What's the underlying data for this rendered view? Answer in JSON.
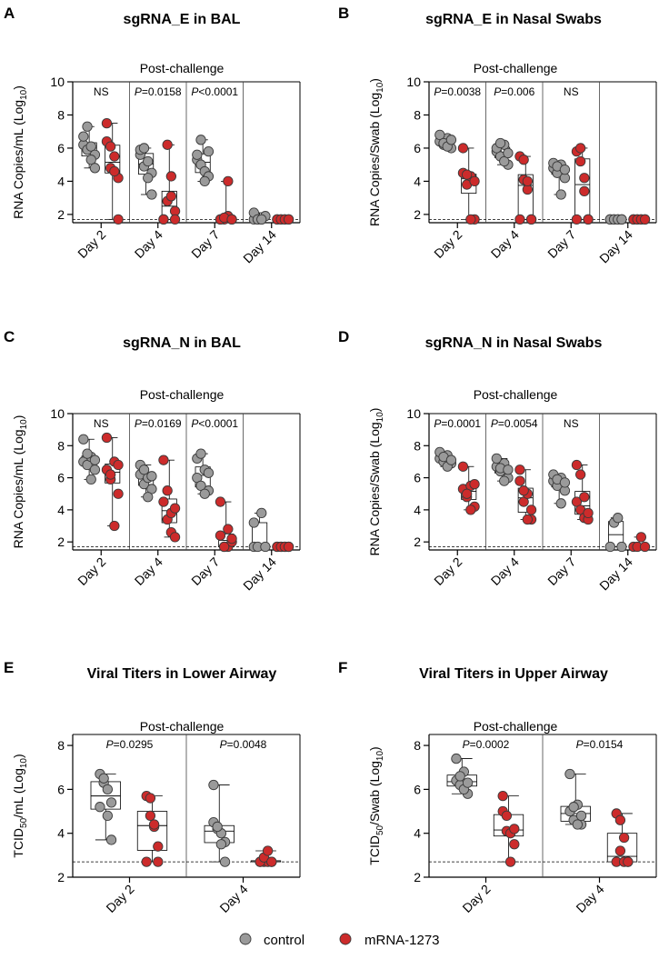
{
  "legend": {
    "items": [
      {
        "label": "control",
        "color": "#9a9a9a"
      },
      {
        "label": "mRNA-1273",
        "color": "#cc2b2b"
      }
    ]
  },
  "chart_data": [
    {
      "letter": "A",
      "type": "box-scatter",
      "title": "sgRNA_E in BAL",
      "subtitle": "Post-challenge",
      "ylabel_main": "RNA Copies/mL (Log",
      "ylabel_sub": "10",
      "ylabel_end": ")",
      "ylim": [
        1.5,
        10
      ],
      "yticks": [
        2,
        4,
        6,
        8,
        10
      ],
      "lod": 1.7,
      "categories": [
        "Day 2",
        "Day 4",
        "Day 7",
        "Day 14"
      ],
      "pvalues": [
        {
          "pre": "",
          "italic": "",
          "text": "NS"
        },
        {
          "pre": "",
          "italic": "P",
          "text": "=0.0158"
        },
        {
          "pre": "",
          "italic": "P",
          "text": "<0.0001"
        },
        {
          "pre": "",
          "italic": "",
          "text": ""
        }
      ],
      "series": [
        {
          "name": "control",
          "values": [
            [
              6.2,
              5.9,
              6.1,
              5.6,
              6.7,
              7.3,
              5.3,
              4.8
            ],
            [
              5.6,
              4.9,
              5.2,
              4.5,
              5.9,
              6.0,
              4.2,
              3.2
            ],
            [
              5.3,
              5.0,
              4.6,
              4.3,
              5.6,
              6.5,
              4.0,
              5.8
            ],
            [
              1.7,
              1.7,
              1.7,
              1.9,
              2.1,
              1.7,
              1.7
            ]
          ]
        },
        {
          "name": "mRNA-1273",
          "values": [
            [
              6.4,
              4.8,
              5.5,
              4.2,
              7.5,
              6.1,
              4.6,
              1.7
            ],
            [
              1.7,
              2.8,
              3.1,
              2.2,
              1.7,
              6.2,
              4.3,
              1.7
            ],
            [
              1.7,
              1.7,
              1.9,
              1.7,
              1.7,
              1.8,
              4.0,
              1.7
            ],
            [
              1.7,
              1.7,
              1.7,
              1.7,
              1.7,
              1.7,
              1.7,
              1.7
            ]
          ]
        }
      ]
    },
    {
      "letter": "B",
      "type": "box-scatter",
      "title": "sgRNA_E in Nasal Swabs",
      "subtitle": "Post-challenge",
      "ylabel_main": "RNA Copies/Swab (Log",
      "ylabel_sub": "10",
      "ylabel_end": ")",
      "ylim": [
        1.5,
        10
      ],
      "yticks": [
        2,
        4,
        6,
        8,
        10
      ],
      "lod": 1.7,
      "categories": [
        "Day 2",
        "Day 4",
        "Day 7",
        "Day 14"
      ],
      "pvalues": [
        {
          "pre": "",
          "italic": "P",
          "text": "=0.0038"
        },
        {
          "pre": "",
          "italic": "P",
          "text": "=0.006"
        },
        {
          "pre": "",
          "italic": "",
          "text": "NS"
        },
        {
          "pre": "",
          "italic": "",
          "text": ""
        }
      ],
      "series": [
        {
          "name": "control",
          "values": [
            [
              6.4,
              6.2,
              6.6,
              6.0,
              6.8,
              6.3,
              6.1,
              6.5
            ],
            [
              5.8,
              5.5,
              6.2,
              5.0,
              6.0,
              6.3,
              5.2,
              5.7
            ],
            [
              4.8,
              4.5,
              5.0,
              4.2,
              5.1,
              4.9,
              3.2,
              4.7
            ],
            [
              1.7,
              1.7,
              1.7,
              1.7,
              1.7,
              1.7,
              1.7,
              1.7
            ]
          ]
        },
        {
          "name": "mRNA-1273",
          "values": [
            [
              4.5,
              3.8,
              4.3,
              1.7,
              6.0,
              4.4,
              1.7,
              4.0
            ],
            [
              5.5,
              4.1,
              3.5,
              1.7,
              1.7,
              5.3,
              4.0,
              1.7
            ],
            [
              5.8,
              5.2,
              3.4,
              1.7,
              1.7,
              6.0,
              4.2,
              1.7
            ],
            [
              1.7,
              1.7,
              1.7,
              1.7,
              1.7,
              1.7,
              1.7,
              1.7
            ]
          ]
        }
      ]
    },
    {
      "letter": "C",
      "type": "box-scatter",
      "title": "sgRNA_N in BAL",
      "subtitle": "Post-challenge",
      "ylabel_main": "RNA Copies/mL (Log",
      "ylabel_sub": "10",
      "ylabel_end": ")",
      "ylim": [
        1.5,
        10
      ],
      "yticks": [
        2,
        4,
        6,
        8,
        10
      ],
      "lod": 1.7,
      "categories": [
        "Day 2",
        "Day 4",
        "Day 7",
        "Day 14"
      ],
      "pvalues": [
        {
          "pre": "",
          "italic": "",
          "text": "NS"
        },
        {
          "pre": "",
          "italic": "P",
          "text": "=0.0169"
        },
        {
          "pre": "",
          "italic": "P",
          "text": "<0.0001"
        },
        {
          "pre": "",
          "italic": "",
          "text": ""
        }
      ],
      "series": [
        {
          "name": "control",
          "values": [
            [
              7.0,
              6.8,
              7.3,
              6.5,
              8.4,
              7.5,
              5.9,
              7.1
            ],
            [
              6.2,
              5.6,
              6.0,
              5.3,
              6.8,
              6.5,
              4.8,
              6.1
            ],
            [
              6.0,
              5.5,
              6.5,
              5.2,
              7.2,
              7.5,
              5.0,
              6.3
            ],
            [
              1.7,
              1.7,
              3.8,
              1.7,
              3.2
            ]
          ]
        },
        {
          "name": "mRNA-1273",
          "values": [
            [
              6.5,
              5.9,
              7.0,
              5.0,
              8.5,
              6.2,
              3.0,
              6.8
            ],
            [
              4.5,
              3.4,
              2.6,
              2.3,
              7.1,
              5.2,
              3.8,
              4.1
            ],
            [
              2.4,
              1.7,
              1.7,
              2.0,
              4.5,
              1.7,
              2.8,
              2.2
            ],
            [
              1.7,
              1.7,
              1.7,
              1.7,
              1.7,
              1.7,
              1.7,
              1.7
            ]
          ]
        }
      ]
    },
    {
      "letter": "D",
      "type": "box-scatter",
      "title": "sgRNA_N in Nasal Swabs",
      "subtitle": "Post-challenge",
      "ylabel_main": "RNA Copies/Swab (Log",
      "ylabel_sub": "10",
      "ylabel_end": ")",
      "ylim": [
        1.5,
        10
      ],
      "yticks": [
        2,
        4,
        6,
        8,
        10
      ],
      "lod": 1.7,
      "categories": [
        "Day 2",
        "Day 4",
        "Day 7",
        "Day 14"
      ],
      "pvalues": [
        {
          "pre": "",
          "italic": "P",
          "text": "=0.0001"
        },
        {
          "pre": "",
          "italic": "P",
          "text": "=0.0054"
        },
        {
          "pre": "",
          "italic": "",
          "text": "NS"
        },
        {
          "pre": "",
          "italic": "",
          "text": ""
        }
      ],
      "series": [
        {
          "name": "control",
          "values": [
            [
              7.2,
              7.0,
              7.4,
              6.9,
              7.6,
              7.3,
              6.7,
              7.1
            ],
            [
              6.7,
              6.4,
              6.9,
              6.0,
              7.2,
              6.6,
              5.8,
              6.5
            ],
            [
              5.8,
              5.5,
              6.0,
              5.2,
              6.2,
              5.9,
              4.4,
              5.7
            ],
            [
              1.7,
              3.2,
              3.5,
              1.7
            ]
          ]
        },
        {
          "name": "mRNA-1273",
          "values": [
            [
              5.3,
              4.8,
              5.5,
              4.2,
              6.7,
              5.0,
              4.0,
              5.6
            ],
            [
              5.8,
              4.5,
              5.0,
              3.4,
              6.5,
              5.2,
              3.4,
              4.0
            ],
            [
              4.5,
              4.0,
              3.5,
              3.4,
              6.8,
              6.2,
              4.8,
              3.8
            ],
            [
              1.7,
              1.7,
              2.3,
              1.7
            ]
          ]
        }
      ]
    },
    {
      "letter": "E",
      "type": "box-scatter",
      "title": "Viral Titers in Lower Airway",
      "subtitle": "Post-challenge",
      "ylabel_pre": "TCID",
      "ylabel_pre_sub": "50",
      "ylabel_main": "/mL (Log",
      "ylabel_sub": "10",
      "ylabel_end": ")",
      "ylim": [
        2,
        8.5
      ],
      "yticks": [
        2,
        4,
        6,
        8
      ],
      "lod": 2.7,
      "categories": [
        "Day 2",
        "Day 4"
      ],
      "pvalues": [
        {
          "pre": "",
          "italic": "P",
          "text": "=0.0295"
        },
        {
          "pre": "",
          "italic": "P",
          "text": "=0.0048"
        }
      ],
      "series": [
        {
          "name": "control",
          "values": [
            [
              6.7,
              6.3,
              6.0,
              5.4,
              5.2,
              6.5,
              4.8,
              3.7
            ],
            [
              4.5,
              4.2,
              4.0,
              3.6,
              6.2,
              4.3,
              3.5,
              2.7
            ]
          ]
        },
        {
          "name": "mRNA-1273",
          "values": [
            [
              5.7,
              4.8,
              4.3,
              3.4,
              2.7,
              5.6,
              4.4,
              2.7
            ],
            [
              2.7,
              2.7,
              2.7,
              2.7,
              2.7,
              2.9,
              3.2,
              2.7
            ]
          ]
        }
      ]
    },
    {
      "letter": "F",
      "type": "box-scatter",
      "title": "Viral Titers in Upper Airway",
      "subtitle": "Post-challenge",
      "ylabel_pre": "TCID",
      "ylabel_pre_sub": "50",
      "ylabel_main": "/Swab (Log",
      "ylabel_sub": "10",
      "ylabel_end": ")",
      "ylim": [
        2,
        8.5
      ],
      "yticks": [
        2,
        4,
        6,
        8
      ],
      "lod": 2.7,
      "categories": [
        "Day 2",
        "Day 4"
      ],
      "pvalues": [
        {
          "pre": "",
          "italic": "P",
          "text": "=0.0002"
        },
        {
          "pre": "",
          "italic": "P",
          "text": "=0.0154"
        }
      ],
      "series": [
        {
          "name": "control",
          "values": [
            [
              6.4,
              6.2,
              6.8,
              5.8,
              7.4,
              6.6,
              6.0,
              6.3
            ],
            [
              5.0,
              4.6,
              5.3,
              4.4,
              6.7,
              5.2,
              4.4,
              4.8
            ]
          ]
        },
        {
          "name": "mRNA-1273",
          "values": [
            [
              5.0,
              4.1,
              4.0,
              3.5,
              5.7,
              4.8,
              2.7,
              4.2
            ],
            [
              2.7,
              3.2,
              3.8,
              2.7,
              4.9,
              4.6,
              2.7,
              2.7
            ]
          ]
        }
      ]
    }
  ]
}
